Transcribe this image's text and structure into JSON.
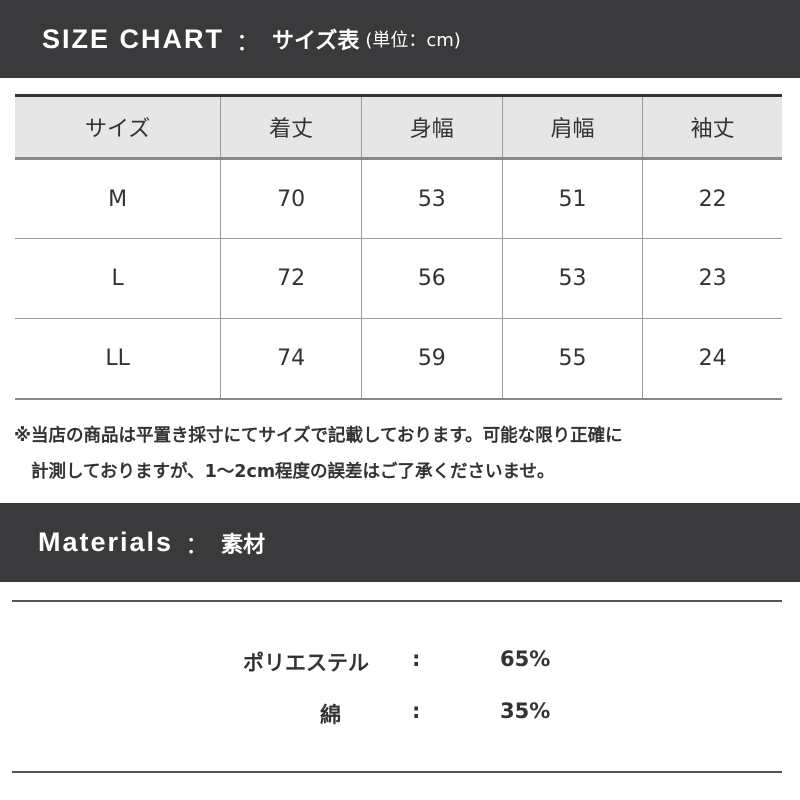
{
  "size_chart": {
    "title_en": "SIZE CHART",
    "separator": "：",
    "title_jp": "サイズ表",
    "unit": "(単位：cm)",
    "headers": [
      "サイズ",
      "着丈",
      "身幅",
      "肩幅",
      "袖丈"
    ],
    "rows": [
      [
        "M",
        "70",
        "53",
        "51",
        "22"
      ],
      [
        "L",
        "72",
        "56",
        "53",
        "23"
      ],
      [
        "LL",
        "74",
        "59",
        "55",
        "24"
      ]
    ]
  },
  "note": {
    "line1": "※当店の商品は平置き採寸にてサイズで記載しております。可能な限り正確に",
    "line2": "計測しておりますが、1〜2cm程度の誤差はご了承くださいませ。"
  },
  "materials": {
    "title_en": "Materials",
    "separator": "：",
    "title_jp": "素材",
    "items": [
      {
        "name": "ポリエステル",
        "colon": ":",
        "value": "65%"
      },
      {
        "name": "綿",
        "colon": ":",
        "value": "35%"
      }
    ]
  }
}
